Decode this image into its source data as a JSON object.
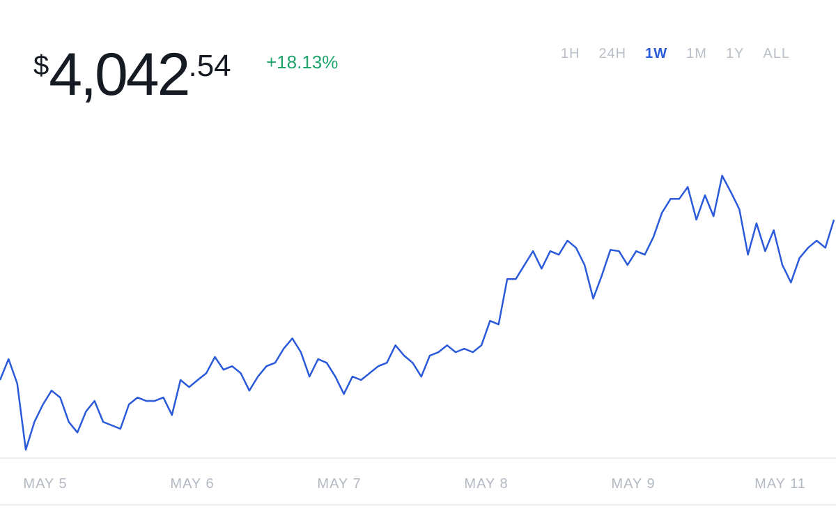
{
  "price": {
    "symbol": "$",
    "whole": "4,042",
    "cents": ".54"
  },
  "change": "+18.13%",
  "ranges": [
    "1H",
    "24H",
    "1W",
    "1M",
    "1Y",
    "ALL"
  ],
  "active_range": "1W",
  "chart_data": {
    "type": "line",
    "color": "#2a5ada",
    "xtick_labels": [
      "MAY 5",
      "MAY 6",
      "MAY 7",
      "MAY 8",
      "MAY 9",
      "MAY 11"
    ],
    "values": [
      3346,
      3437,
      3331,
      3043,
      3164,
      3240,
      3300,
      3270,
      3164,
      3118,
      3209,
      3255,
      3164,
      3149,
      3134,
      3240,
      3270,
      3255,
      3255,
      3270,
      3194,
      3346,
      3315,
      3346,
      3376,
      3446,
      3391,
      3406,
      3376,
      3300,
      3361,
      3406,
      3421,
      3482,
      3527,
      3467,
      3361,
      3437,
      3421,
      3361,
      3285,
      3361,
      3346,
      3376,
      3406,
      3421,
      3497,
      3452,
      3421,
      3361,
      3452,
      3467,
      3497,
      3467,
      3482,
      3467,
      3497,
      3603,
      3588,
      3785,
      3785,
      3846,
      3906,
      3830,
      3906,
      3891,
      3952,
      3921,
      3846,
      3700,
      3800,
      3912,
      3906,
      3846,
      3906,
      3891,
      3967,
      4073,
      4133,
      4133,
      4185,
      4043,
      4149,
      4058,
      4234,
      4164,
      4088,
      3891,
      4027,
      3906,
      3997,
      3846,
      3770,
      3876,
      3921,
      3952,
      3921,
      4042.54
    ]
  }
}
